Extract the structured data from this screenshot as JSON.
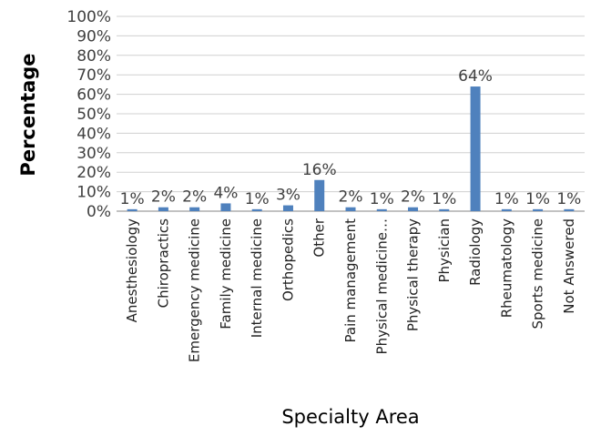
{
  "chart_data": {
    "type": "bar",
    "xlabel": "Specialty Area",
    "ylabel": "Percentage",
    "ylim": [
      0,
      100
    ],
    "yticks": [
      "0%",
      "10%",
      "20%",
      "30%",
      "40%",
      "50%",
      "60%",
      "70%",
      "80%",
      "90%",
      "100%"
    ],
    "grid": true,
    "legend": "none",
    "bar_color": "#4f81bd",
    "categories": [
      "Anesthesiology",
      "Chiropractics",
      "Emergency medicine",
      "Family medicine",
      "Internal medicine",
      "Orthopedics",
      "Other",
      "Pain management",
      "Physical medicine…",
      "Physical therapy",
      "Physician",
      "Radiology",
      "Rheumatology",
      "Sports medicine",
      "Not Answered"
    ],
    "values": [
      1,
      2,
      2,
      4,
      1,
      3,
      16,
      2,
      1,
      2,
      1,
      64,
      1,
      1,
      1
    ],
    "data_labels": [
      "1%",
      "2%",
      "2%",
      "4%",
      "1%",
      "3%",
      "16%",
      "2%",
      "1%",
      "2%",
      "1%",
      "64%",
      "1%",
      "1%",
      "1%"
    ]
  }
}
